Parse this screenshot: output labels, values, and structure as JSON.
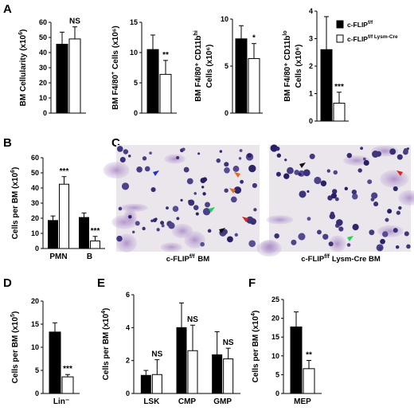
{
  "panel_letters": [
    "A",
    "B",
    "C",
    "D",
    "E",
    "F"
  ],
  "legend": {
    "entries": [
      {
        "label": "c-FLIP",
        "sup": "f/f",
        "fill": "#000000"
      },
      {
        "label": "c-FLIP",
        "sup": "f/f Lysm-Cre",
        "fill": "#ffffff"
      }
    ]
  },
  "micrographs": {
    "left_caption": "c-FLIP",
    "left_caption_sup": "f/f",
    "left_caption_tail": "BM",
    "right_caption": "c-FLIP",
    "right_caption_sup": "f/f",
    "right_caption_tail": "Lysm-Cre BM",
    "background": "#ebe5ec",
    "arrow_colors": [
      "#1f2fd0",
      "#e96a1b",
      "#1fd15a",
      "#e02424",
      "#111111"
    ]
  },
  "chart_data": [
    {
      "id": "A1",
      "type": "bar",
      "ylabel": "BM Cellularity (x10",
      "ylabel_sup": "6",
      "ylabel_tail": ")",
      "ylim": [
        0,
        60
      ],
      "yticks": [
        0,
        10,
        20,
        30,
        40,
        50,
        60
      ],
      "categories": [
        ""
      ],
      "series": [
        {
          "name": "c-FLIP f/f",
          "values": [
            45.5
          ],
          "err": [
            8
          ]
        },
        {
          "name": "c-FLIP f/f Lysm-Cre",
          "values": [
            49
          ],
          "err": [
            8
          ]
        }
      ],
      "significance": [
        "NS"
      ]
    },
    {
      "id": "A2",
      "type": "bar",
      "ylabel": "BM F4/80",
      "ylabel_sup": "+",
      "ylabel_tail": " Cells (x10⁶)",
      "ylim": [
        0,
        15
      ],
      "yticks": [
        0,
        5,
        10,
        15
      ],
      "categories": [
        ""
      ],
      "series": [
        {
          "name": "c-FLIP f/f",
          "values": [
            10.5
          ],
          "err": [
            2.4
          ]
        },
        {
          "name": "c-FLIP f/f Lysm-Cre",
          "values": [
            6.4
          ],
          "err": [
            2.3
          ]
        }
      ],
      "significance": [
        "**"
      ]
    },
    {
      "id": "A3",
      "type": "bar",
      "ylabel": "BM F4/80⁺ CD11b",
      "ylabel_sup": "hi",
      "ylabel2": "Cells (x10⁶)",
      "ylim": [
        0,
        10
      ],
      "yticks": [
        0,
        5,
        10
      ],
      "categories": [
        ""
      ],
      "series": [
        {
          "name": "c-FLIP f/f",
          "values": [
            7.9
          ],
          "err": [
            1.4
          ]
        },
        {
          "name": "c-FLIP f/f Lysm-Cre",
          "values": [
            5.8
          ],
          "err": [
            1.6
          ]
        }
      ],
      "significance": [
        "*"
      ]
    },
    {
      "id": "A4",
      "type": "bar",
      "ylabel": "BM F4/80⁺ CD11b",
      "ylabel_sup": "lo",
      "ylabel2": "Cells (x10⁶)",
      "ylim": [
        0,
        4
      ],
      "yticks": [
        0,
        1,
        2,
        3,
        4
      ],
      "categories": [
        ""
      ],
      "series": [
        {
          "name": "c-FLIP f/f",
          "values": [
            2.6
          ],
          "err": [
            1.2
          ]
        },
        {
          "name": "c-FLIP f/f Lysm-Cre",
          "values": [
            0.65
          ],
          "err": [
            0.4
          ]
        }
      ],
      "significance": [
        "***"
      ]
    },
    {
      "id": "B",
      "type": "bar",
      "ylabel": "Cells per BM (x10",
      "ylabel_sup": "6",
      "ylabel_tail": ")",
      "ylim": [
        0,
        60
      ],
      "yticks": [
        0,
        10,
        20,
        30,
        40,
        50,
        60
      ],
      "categories": [
        "PMN",
        "B"
      ],
      "series": [
        {
          "name": "c-FLIP f/f",
          "values": [
            18.5,
            20.5
          ],
          "err": [
            3,
            3
          ]
        },
        {
          "name": "c-FLIP f/f Lysm-Cre",
          "values": [
            42.5,
            5
          ],
          "err": [
            5,
            3
          ]
        }
      ],
      "significance": [
        "***",
        "***"
      ]
    },
    {
      "id": "D",
      "type": "bar",
      "ylabel": "Cells per BM (x10",
      "ylabel_sup": "5",
      "ylabel_tail": ")",
      "ylim": [
        0,
        20
      ],
      "yticks": [
        0,
        5,
        10,
        15,
        20
      ],
      "categories": [
        "Lin⁻"
      ],
      "series": [
        {
          "name": "c-FLIP f/f",
          "values": [
            13.3
          ],
          "err": [
            2
          ]
        },
        {
          "name": "c-FLIP f/f Lysm-Cre",
          "values": [
            3.6
          ],
          "err": [
            0.5
          ]
        }
      ],
      "significance": [
        "***"
      ]
    },
    {
      "id": "E",
      "type": "bar",
      "ylabel": "Cells per BM (x10",
      "ylabel_sup": "4",
      "ylabel_tail": ")",
      "ylim": [
        0,
        6
      ],
      "yticks": [
        0,
        2,
        4,
        6
      ],
      "categories": [
        "LSK",
        "CMP",
        "GMP"
      ],
      "series": [
        {
          "name": "c-FLIP f/f",
          "values": [
            1.1,
            4.0,
            2.35
          ],
          "err": [
            0.3,
            1.5,
            1.4
          ]
        },
        {
          "name": "c-FLIP f/f Lysm-Cre",
          "values": [
            1.15,
            2.6,
            2.1
          ],
          "err": [
            0.9,
            1.55,
            0.65
          ]
        }
      ],
      "significance": [
        "NS",
        "NS",
        "NS"
      ]
    },
    {
      "id": "F",
      "type": "bar",
      "ylabel": "Cells per BM (x10",
      "ylabel_sup": "4",
      "ylabel_tail": ")",
      "ylim": [
        0,
        25
      ],
      "yticks": [
        0,
        5,
        10,
        15,
        20,
        25
      ],
      "categories": [
        "MEP"
      ],
      "series": [
        {
          "name": "c-FLIP f/f",
          "values": [
            17.7
          ],
          "err": [
            4
          ]
        },
        {
          "name": "c-FLIP f/f Lysm-Cre",
          "values": [
            6.6
          ],
          "err": [
            2.2
          ]
        }
      ],
      "significance": [
        "**"
      ]
    }
  ]
}
